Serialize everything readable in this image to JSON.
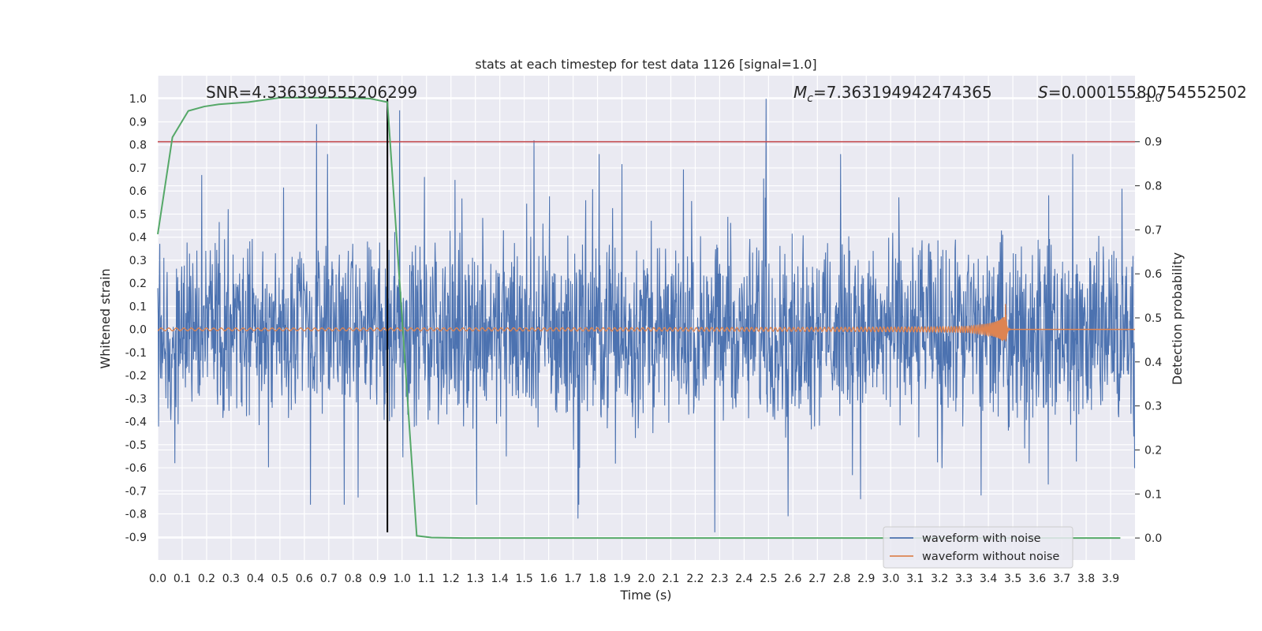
{
  "chart_data": {
    "type": "line",
    "title": "stats at each timestep for test data 1126 [signal=1.0]",
    "xlabel": "Time (s)",
    "ylabel": "Whitened strain",
    "y2label": "Detection probability",
    "xlim": [
      0.0,
      4.0
    ],
    "ylim": [
      -1.0,
      1.1
    ],
    "y2lim": [
      -0.05,
      1.05
    ],
    "xticks": [
      "0.0",
      "0.1",
      "0.2",
      "0.3",
      "0.4",
      "0.5",
      "0.6",
      "0.7",
      "0.8",
      "0.9",
      "1.0",
      "1.1",
      "1.2",
      "1.3",
      "1.4",
      "1.5",
      "1.6",
      "1.7",
      "1.8",
      "1.9",
      "2.0",
      "2.1",
      "2.2",
      "2.3",
      "2.4",
      "2.5",
      "2.6",
      "2.7",
      "2.8",
      "2.9",
      "3.0",
      "3.1",
      "3.2",
      "3.3",
      "3.4",
      "3.5",
      "3.6",
      "3.7",
      "3.8",
      "3.9"
    ],
    "yticks": [
      "1.0",
      "0.9",
      "0.8",
      "0.7",
      "0.6",
      "0.5",
      "0.4",
      "0.3",
      "0.2",
      "0.1",
      "0.0",
      "-0.1",
      "-0.2",
      "-0.3",
      "-0.4",
      "-0.5",
      "-0.6",
      "-0.7",
      "-0.8",
      "-0.9"
    ],
    "y2ticks": [
      "1.0",
      "0.9",
      "0.8",
      "0.7",
      "0.6",
      "0.5",
      "0.4",
      "0.3",
      "0.2",
      "0.1",
      "0.0"
    ],
    "annotations": {
      "snr": "SNR=4.336399555206299",
      "mc_symbol": "M",
      "mc_sub": "c",
      "mc_value": "=7.363194942474365",
      "s_symbol": "S",
      "s_value": "=0.00015580754552502"
    },
    "legend": {
      "placement": "lower-right",
      "entries": [
        "waveform with noise",
        "waveform without noise"
      ]
    },
    "threshold_line": {
      "axis": "y2",
      "value": 0.9,
      "color": "#c44e52"
    },
    "marker_line": {
      "x": 0.94,
      "y_from": -0.88,
      "y_to": 1.0,
      "color": "#000000"
    },
    "series": [
      {
        "name": "waveform with noise",
        "axis": "y",
        "color": "#4c72b0",
        "kind": "noise",
        "envelope_pos": 0.45,
        "envelope_neg": -0.45,
        "spikes": [
          [
            0.65,
            0.89
          ],
          [
            0.99,
            0.95
          ],
          [
            1.54,
            0.82
          ],
          [
            2.28,
            -0.88
          ],
          [
            2.49,
            1.0
          ],
          [
            0.07,
            -0.58
          ],
          [
            1.72,
            -0.82
          ],
          [
            2.58,
            -0.81
          ],
          [
            3.37,
            -0.72
          ]
        ]
      },
      {
        "name": "waveform without noise",
        "axis": "y",
        "color": "#dd8452",
        "kind": "chirp",
        "start_amplitude": 0.006,
        "peak_amplitude": 0.11,
        "merger_time": 3.47
      },
      {
        "name": "detection probability",
        "axis": "y2",
        "color": "#55a868",
        "x": [
          0.0,
          0.06,
          0.125,
          0.19,
          0.25,
          0.37,
          0.5,
          0.62,
          0.75,
          0.87,
          0.94,
          1.0,
          1.06,
          1.12,
          1.25,
          1.5,
          2.0,
          2.5,
          3.0,
          3.5,
          3.94
        ],
        "y": [
          0.69,
          0.91,
          0.97,
          0.98,
          0.985,
          0.99,
          1.0,
          1.0,
          1.0,
          0.998,
          0.99,
          0.5,
          0.005,
          0.001,
          0.0,
          0.0,
          0.0,
          0.0,
          0.0,
          0.0,
          0.0
        ]
      }
    ]
  }
}
